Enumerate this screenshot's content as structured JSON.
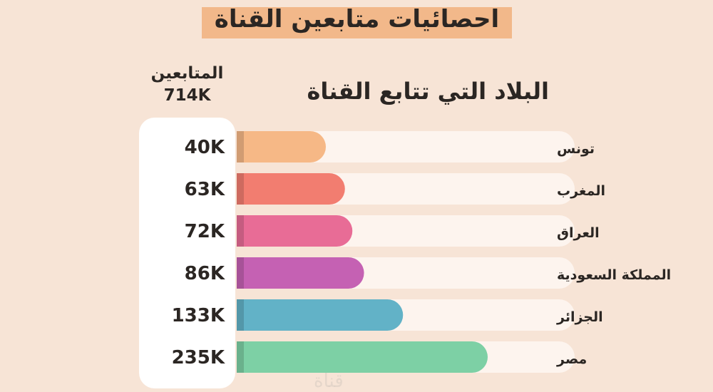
{
  "title": "احصائيات متابعين القناة",
  "columns": {
    "followers_label": "المتابعين",
    "followers_total": "714K",
    "countries_label": "البلاد التي تتابع القناة"
  },
  "chart_data": {
    "type": "bar",
    "orientation": "horizontal",
    "title": "احصائيات متابعين القناة",
    "categories": [
      "تونس",
      "المغرب",
      "العراق",
      "المملكة السعودية",
      "الجزائر",
      "مصر"
    ],
    "values": [
      40,
      63,
      72,
      86,
      133,
      235
    ],
    "value_labels": [
      "40K",
      "63K",
      "72K",
      "86K",
      "133K",
      "235K"
    ],
    "unit": "K",
    "total_label": "714K",
    "colors": [
      "#f6b886",
      "#f27d70",
      "#e86c96",
      "#c561b3",
      "#62b2c7",
      "#7dd0a5"
    ],
    "track_color": "#fdf4ee"
  },
  "watermark": "قناة"
}
